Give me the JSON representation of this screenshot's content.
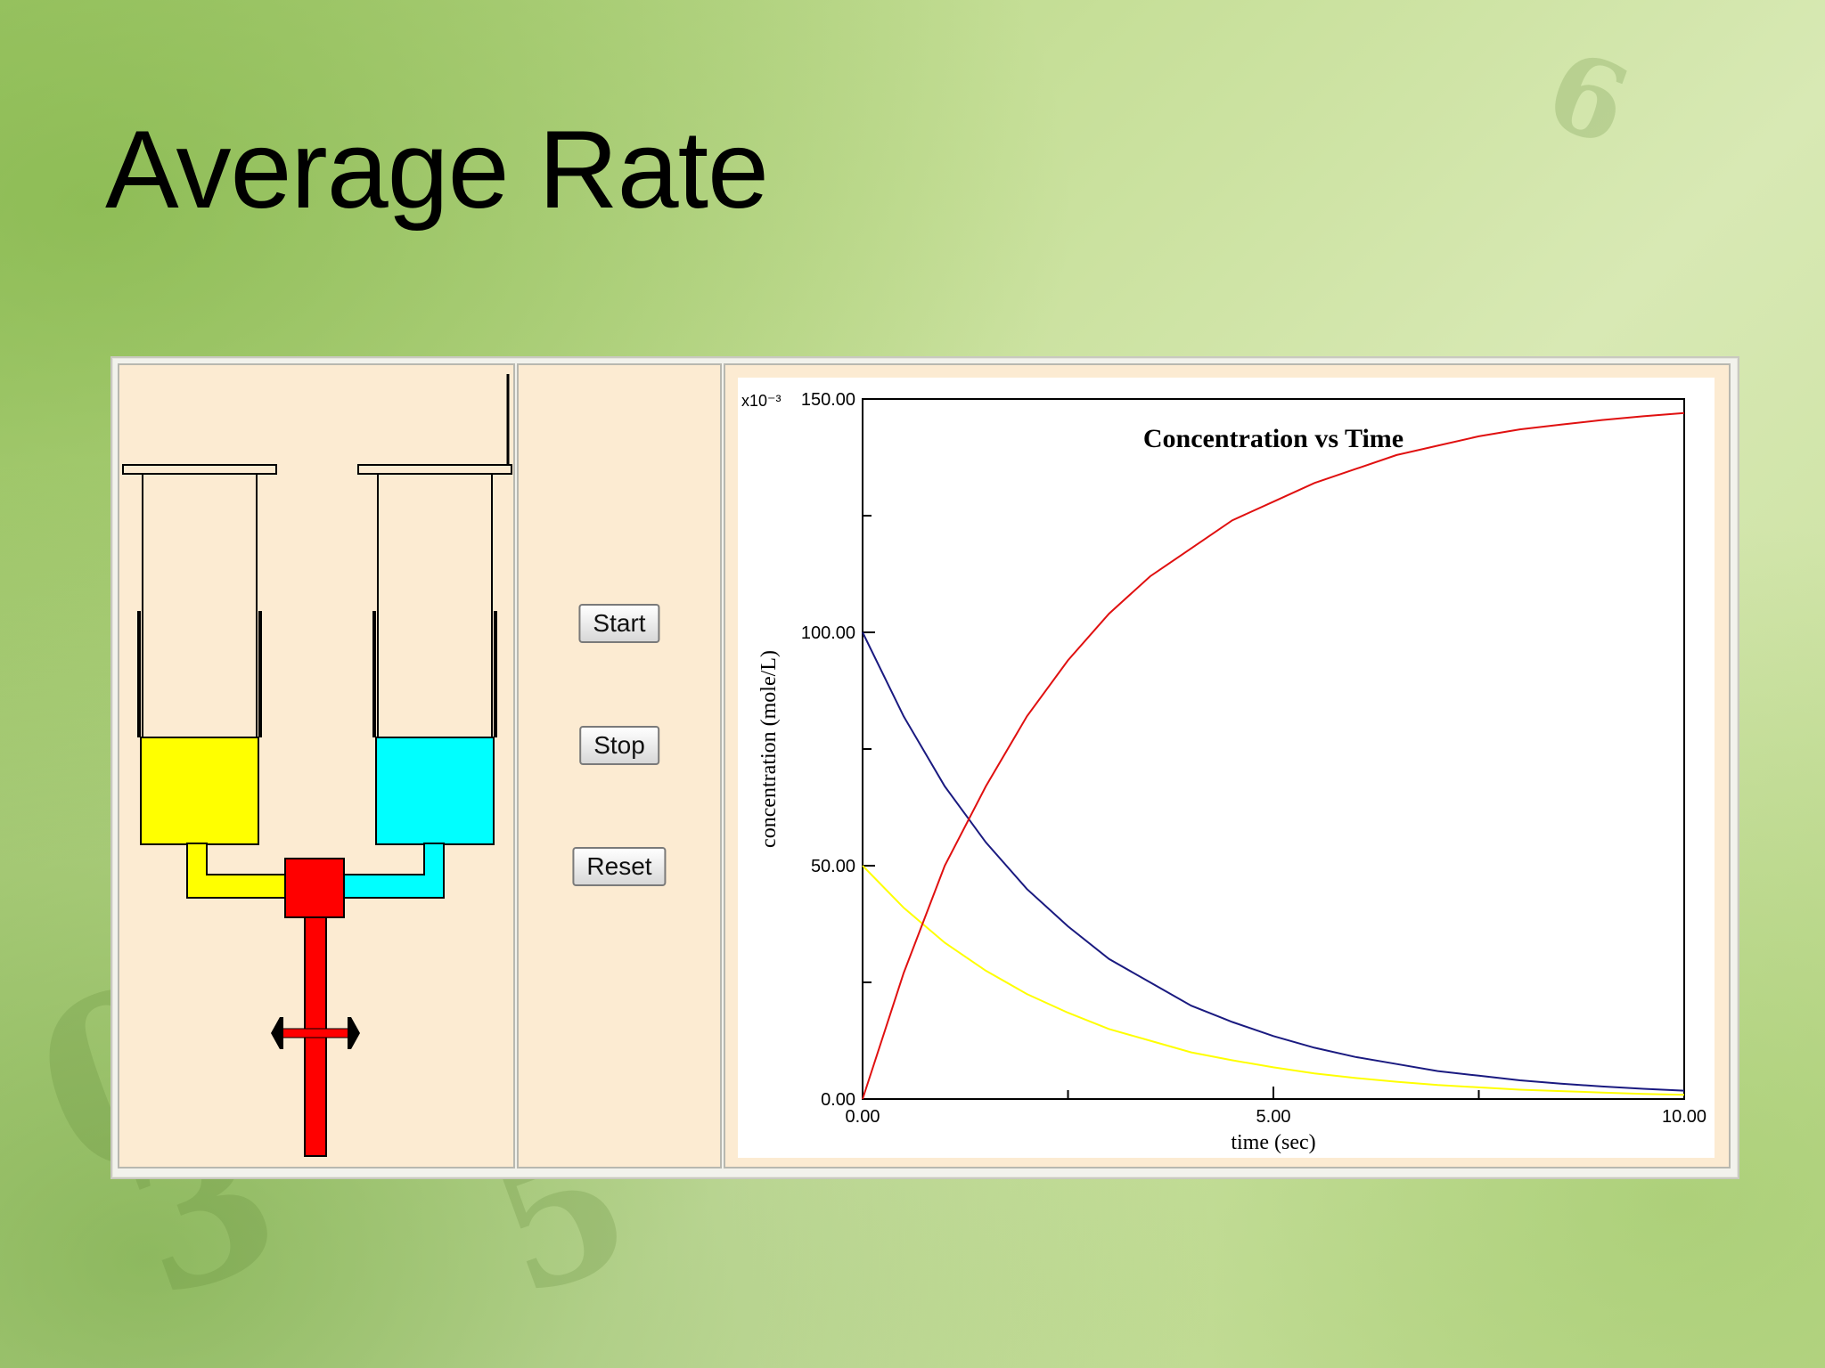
{
  "slide": {
    "title": "Average Rate"
  },
  "controls": {
    "start_label": "Start",
    "stop_label": "Stop",
    "reset_label": "Reset"
  },
  "apparatus": {
    "left_reagent_color": "#ffff00",
    "right_reagent_color": "#00ffff",
    "mixer_color": "#ff0000"
  },
  "chart_data": {
    "type": "line",
    "title": "Concentration vs Time",
    "xlabel": "time (sec)",
    "ylabel": "concentration (mole/L)",
    "y_multiplier_label": "x10⁻³",
    "xlim": [
      0,
      10
    ],
    "ylim": [
      0,
      150
    ],
    "x_tick_labels": [
      "0.00",
      "5.00",
      "10.00"
    ],
    "y_tick_labels": [
      "0.00",
      "50.00",
      "100.00",
      "150.00"
    ],
    "grid": false,
    "series": [
      {
        "color": "#1a1a80",
        "x": [
          0,
          0.5,
          1,
          1.5,
          2,
          2.5,
          3,
          3.5,
          4,
          4.5,
          5,
          5.5,
          6,
          6.5,
          7,
          7.5,
          8,
          8.5,
          9,
          9.5,
          10
        ],
        "y": [
          100,
          82,
          67,
          55,
          45,
          37,
          30,
          25,
          20,
          16.5,
          13.5,
          11,
          9,
          7.5,
          6,
          5,
          4,
          3.3,
          2.7,
          2.2,
          1.8
        ]
      },
      {
        "color": "#ffff00",
        "x": [
          0,
          0.5,
          1,
          1.5,
          2,
          2.5,
          3,
          3.5,
          4,
          4.5,
          5,
          5.5,
          6,
          6.5,
          7,
          7.5,
          8,
          8.5,
          9,
          9.5,
          10
        ],
        "y": [
          50,
          41,
          33.5,
          27.5,
          22.5,
          18.5,
          15,
          12.5,
          10,
          8.3,
          6.8,
          5.5,
          4.5,
          3.7,
          3,
          2.5,
          2,
          1.7,
          1.4,
          1.1,
          0.9
        ]
      },
      {
        "color": "#e01010",
        "x": [
          0,
          0.5,
          1,
          1.5,
          2,
          2.5,
          3,
          3.5,
          4,
          4.5,
          5,
          5.5,
          6,
          6.5,
          7,
          7.5,
          8,
          8.5,
          9,
          9.5,
          10
        ],
        "y": [
          0,
          27,
          50,
          67,
          82,
          94,
          104,
          112,
          118,
          124,
          128,
          132,
          135,
          138,
          140,
          142,
          143.5,
          144.5,
          145.5,
          146.3,
          147
        ]
      }
    ]
  }
}
